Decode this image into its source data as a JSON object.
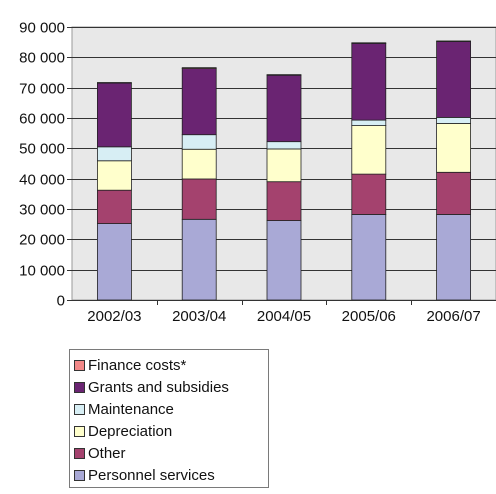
{
  "chart_data": {
    "type": "bar",
    "stacked": true,
    "categories": [
      "2002/03",
      "2003/04",
      "2004/05",
      "2005/06",
      "2006/07"
    ],
    "ylim": [
      0,
      90000
    ],
    "yticks": [
      0,
      10000,
      20000,
      30000,
      40000,
      50000,
      60000,
      70000,
      80000,
      90000
    ],
    "ytick_labels": [
      "0",
      "10 000",
      "20 000",
      "30 000",
      "40 000",
      "50 000",
      "60 000",
      "70 000",
      "80 000",
      "90 000"
    ],
    "grid": true,
    "legend_position": "bottom",
    "series": [
      {
        "name": "Personnel services",
        "color": "#a9a9d6",
        "values": [
          25200,
          26600,
          26200,
          28200,
          28200
        ]
      },
      {
        "name": "Other",
        "color": "#a4426e",
        "values": [
          11000,
          13300,
          12800,
          13300,
          13900
        ]
      },
      {
        "name": "Depreciation",
        "color": "#ffffcc",
        "values": [
          9700,
          9800,
          10800,
          16000,
          16100
        ]
      },
      {
        "name": "Maintenance",
        "color": "#d7eef4",
        "values": [
          4600,
          4800,
          2400,
          1800,
          2000
        ]
      },
      {
        "name": "Grants and subsidies",
        "color": "#6a2472",
        "values": [
          21000,
          21800,
          21900,
          25300,
          25000
        ]
      },
      {
        "name": "Finance costs*",
        "color": "#f28888",
        "values": [
          200,
          300,
          200,
          200,
          200
        ]
      }
    ],
    "legend_order": [
      "Finance costs*",
      "Grants and subsidies",
      "Maintenance",
      "Depreciation",
      "Other",
      "Personnel services"
    ]
  },
  "colors": {
    "plot_background": "#e8e8e8",
    "gridline": "#333333"
  }
}
